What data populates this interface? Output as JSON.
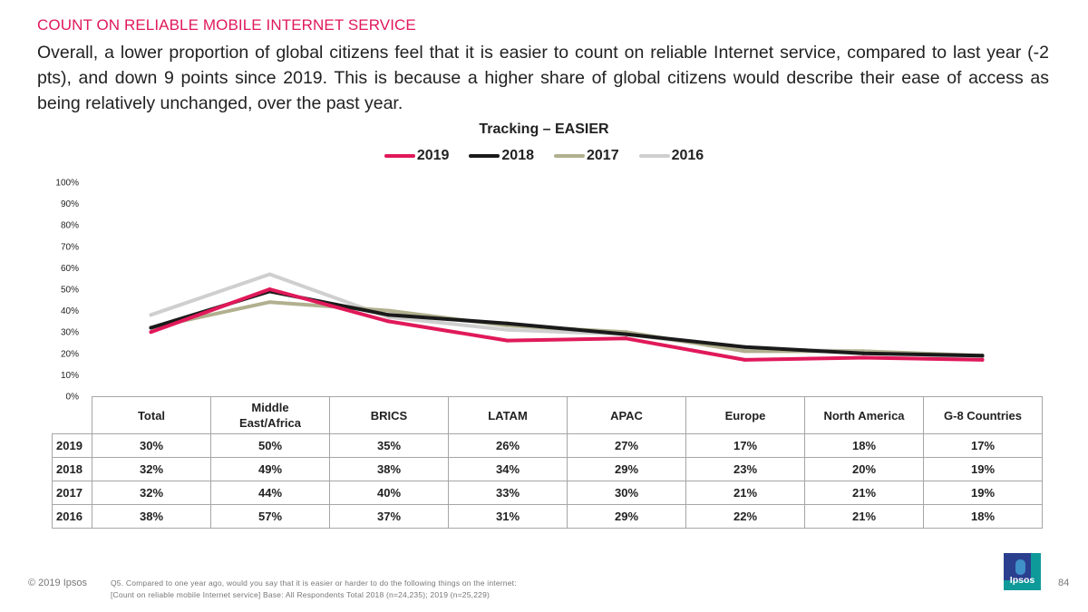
{
  "header": {
    "kicker": "COUNT ON RELIABLE MOBILE INTERNET SERVICE",
    "headline": "Overall, a lower proportion of global citizens feel that it is easier to count on reliable Internet service, compared to last year (-2 pts), and down 9 points since 2019. This is because a higher share of global citizens would describe their ease of access as being relatively unchanged, over the past year."
  },
  "chart_data": {
    "type": "line",
    "title": "Tracking – EASIER",
    "xlabel": "",
    "ylabel": "",
    "ylim": [
      0,
      100
    ],
    "y_ticks": [
      "0%",
      "10%",
      "20%",
      "30%",
      "40%",
      "50%",
      "60%",
      "70%",
      "80%",
      "90%",
      "100%"
    ],
    "grid": false,
    "legend_position": "top",
    "categories": [
      "Total",
      "Middle East/Africa",
      "BRICS",
      "LATAM",
      "APAC",
      "Europe",
      "North America",
      "G-8 Countries"
    ],
    "series": [
      {
        "name": "2019",
        "color": "#e0195a",
        "values": [
          30,
          50,
          35,
          26,
          27,
          17,
          18,
          17
        ]
      },
      {
        "name": "2018",
        "color": "#1a1a1a",
        "values": [
          32,
          49,
          38,
          34,
          29,
          23,
          20,
          19
        ]
      },
      {
        "name": "2017",
        "color": "#b1b08f",
        "values": [
          32,
          44,
          40,
          33,
          30,
          21,
          21,
          19
        ]
      },
      {
        "name": "2016",
        "color": "#cfcfcf",
        "values": [
          38,
          57,
          37,
          31,
          29,
          22,
          21,
          18
        ]
      }
    ],
    "table": {
      "header_lines": [
        [
          "Total"
        ],
        [
          "Middle",
          "East/Africa"
        ],
        [
          "BRICS"
        ],
        [
          "LATAM"
        ],
        [
          "APAC"
        ],
        [
          "Europe"
        ],
        [
          "North America"
        ],
        [
          "G-8 Countries"
        ]
      ],
      "rows": [
        {
          "label": "2019",
          "cells": [
            "30%",
            "50%",
            "35%",
            "26%",
            "27%",
            "17%",
            "18%",
            "17%"
          ]
        },
        {
          "label": "2018",
          "cells": [
            "32%",
            "49%",
            "38%",
            "34%",
            "29%",
            "23%",
            "20%",
            "19%"
          ]
        },
        {
          "label": "2017",
          "cells": [
            "32%",
            "44%",
            "40%",
            "33%",
            "30%",
            "21%",
            "21%",
            "19%"
          ]
        },
        {
          "label": "2016",
          "cells": [
            "38%",
            "57%",
            "37%",
            "31%",
            "29%",
            "22%",
            "21%",
            "18%"
          ]
        }
      ]
    }
  },
  "footer": {
    "copyright": "© 2019 Ipsos",
    "note_line1": "Q5. Compared to one year ago, would you say that it is easier or harder to do the following things on the internet:",
    "note_line2": "[Count on reliable mobile Internet service] Base: All Respondents Total 2018 (n=24,235); 2019 (n=25,229)",
    "page_number": "84",
    "logo_text": "Ipsos"
  }
}
